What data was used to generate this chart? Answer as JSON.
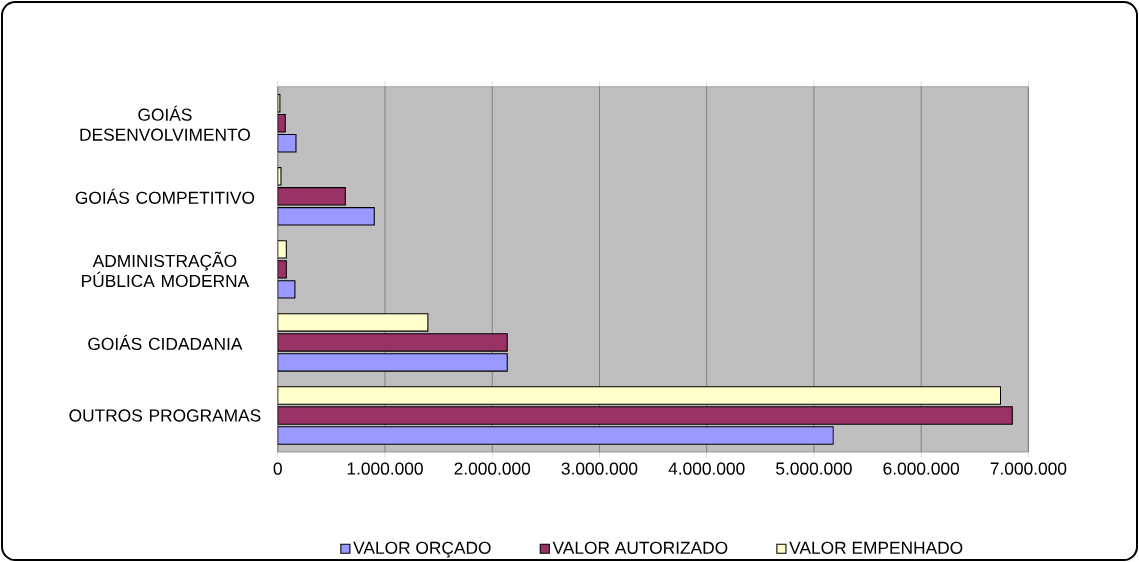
{
  "chart_data": {
    "type": "bar",
    "orientation": "horizontal",
    "categories": [
      "GOIÁS DESENVOLVIMENTO",
      "GOIÁS COMPETITIVO",
      "ADMINISTRAÇÃO PÚBLICA MODERNA",
      "GOIÁS CIDADANIA",
      "OUTROS PROGRAMAS"
    ],
    "series": [
      {
        "name": "VALOR ORÇADO",
        "color": "#9999ff",
        "values": [
          170000,
          900000,
          160000,
          2140000,
          5180000
        ]
      },
      {
        "name": "VALOR AUTORIZADO",
        "color": "#993366",
        "values": [
          70000,
          630000,
          80000,
          2140000,
          6850000
        ]
      },
      {
        "name": "VALOR EMPENHADO",
        "color": "#ffffcc",
        "values": [
          20000,
          30000,
          80000,
          1400000,
          6740000
        ]
      }
    ],
    "xlim": [
      0,
      7000000
    ],
    "xticks": [
      0,
      {
        "value": 1000000,
        "label": "1.000.000"
      },
      {
        "value": 2000000,
        "label": "2.000.000"
      },
      {
        "value": 3000000,
        "label": "3.000.000"
      },
      {
        "value": 4000000,
        "label": "4.000.000"
      },
      {
        "value": 5000000,
        "label": "5.000.000"
      },
      {
        "value": 6000000,
        "label": "6.000.000"
      },
      {
        "value": 7000000,
        "label": "7.000.000"
      }
    ],
    "grid": "x",
    "legend": "bottom"
  }
}
